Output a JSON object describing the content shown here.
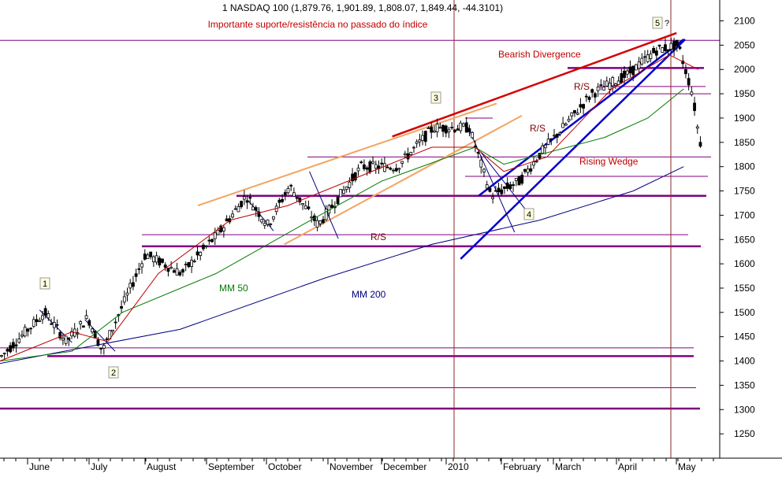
{
  "chart_data": {
    "type": "candlestick",
    "title": "1 NASDAQ 100 (1,879.76, 1,901.89, 1,808.07, 1,849.44, -44.3101)",
    "subtitle": "Importante suporte/resistência no passado do índice",
    "ylim": [
      1200,
      2130
    ],
    "y_ticks": [
      1250,
      1300,
      1350,
      1400,
      1450,
      1500,
      1550,
      1600,
      1650,
      1700,
      1750,
      1800,
      1850,
      1900,
      1950,
      2000,
      2050,
      2100
    ],
    "x_labels": [
      "June",
      "July",
      "August",
      "September",
      "October",
      "November",
      "December",
      "2010",
      "February",
      "March",
      "April",
      "May"
    ],
    "colors": {
      "candle": "#000000",
      "ma50": "#007a00",
      "ma200": "#000080",
      "ma_short": "#c00000",
      "sr_line": "#800080",
      "orange_trend": "#f4a460",
      "red_trend": "#d40000",
      "blue_trend": "#0000cc",
      "vline": "#8b2a2a",
      "annotation_red": "#c00000",
      "annotation_green": "#007a00",
      "annotation_navy": "#000080",
      "annotation_maroon": "#800000"
    },
    "annotations": {
      "bearish_divergence": "Bearish Divergence",
      "rising_wedge": "Rising Wedge",
      "rs1": "R/S",
      "rs2": "R/S",
      "rs3": "R/S",
      "ma50_label": "MM 50",
      "ma200_label": "MM 200",
      "wave1": "1",
      "wave2": "2",
      "wave3": "3",
      "wave4": "4",
      "wave5": "5",
      "question": "?"
    },
    "support_resistance_levels": [
      {
        "value": 2060,
        "strong": false
      },
      {
        "value": 2003,
        "strong": true
      },
      {
        "value": 1965,
        "strong": false
      },
      {
        "value": 1950,
        "strong": false
      },
      {
        "value": 1900,
        "strong": false
      },
      {
        "value": 1820,
        "strong": false
      },
      {
        "value": 1780,
        "strong": false
      },
      {
        "value": 1740,
        "strong": true
      },
      {
        "value": 1660,
        "strong": false
      },
      {
        "value": 1636,
        "strong": true
      },
      {
        "value": 1427,
        "strong": false
      },
      {
        "value": 1410,
        "strong": true
      },
      {
        "value": 1345,
        "strong": false
      },
      {
        "value": 1302,
        "strong": true
      }
    ],
    "ma200_points": [
      {
        "t": 0,
        "v": 1395
      },
      {
        "t": 0.25,
        "v": 1465
      },
      {
        "t": 0.45,
        "v": 1570
      },
      {
        "t": 0.6,
        "v": 1640
      },
      {
        "t": 0.75,
        "v": 1690
      },
      {
        "t": 0.88,
        "v": 1750
      },
      {
        "t": 0.95,
        "v": 1800
      }
    ],
    "ma50_points": [
      {
        "t": 0,
        "v": 1400
      },
      {
        "t": 0.1,
        "v": 1420
      },
      {
        "t": 0.17,
        "v": 1500
      },
      {
        "t": 0.3,
        "v": 1580
      },
      {
        "t": 0.42,
        "v": 1680
      },
      {
        "t": 0.53,
        "v": 1770
      },
      {
        "t": 0.66,
        "v": 1840
      },
      {
        "t": 0.7,
        "v": 1805
      },
      {
        "t": 0.84,
        "v": 1860
      },
      {
        "t": 0.9,
        "v": 1900
      },
      {
        "t": 0.95,
        "v": 1960
      }
    ],
    "price_points": [
      {
        "t": 0,
        "v": 1410
      },
      {
        "t": 0.06,
        "v": 1500
      },
      {
        "t": 0.09,
        "v": 1440
      },
      {
        "t": 0.12,
        "v": 1490
      },
      {
        "t": 0.14,
        "v": 1420
      },
      {
        "t": 0.2,
        "v": 1620
      },
      {
        "t": 0.25,
        "v": 1580
      },
      {
        "t": 0.3,
        "v": 1660
      },
      {
        "t": 0.34,
        "v": 1740
      },
      {
        "t": 0.37,
        "v": 1680
      },
      {
        "t": 0.4,
        "v": 1760
      },
      {
        "t": 0.44,
        "v": 1680
      },
      {
        "t": 0.5,
        "v": 1800
      },
      {
        "t": 0.55,
        "v": 1800
      },
      {
        "t": 0.6,
        "v": 1880
      },
      {
        "t": 0.65,
        "v": 1880
      },
      {
        "t": 0.68,
        "v": 1740
      },
      {
        "t": 0.72,
        "v": 1770
      },
      {
        "t": 0.75,
        "v": 1830
      },
      {
        "t": 0.78,
        "v": 1880
      },
      {
        "t": 0.82,
        "v": 1950
      },
      {
        "t": 0.87,
        "v": 1990
      },
      {
        "t": 0.91,
        "v": 2040
      },
      {
        "t": 0.94,
        "v": 2050
      },
      {
        "t": 0.96,
        "v": 1950
      },
      {
        "t": 0.97,
        "v": 1850
      }
    ],
    "ma_short_points": [
      {
        "t": 0,
        "v": 1400
      },
      {
        "t": 0.1,
        "v": 1460
      },
      {
        "t": 0.15,
        "v": 1440
      },
      {
        "t": 0.22,
        "v": 1580
      },
      {
        "t": 0.32,
        "v": 1690
      },
      {
        "t": 0.4,
        "v": 1720
      },
      {
        "t": 0.5,
        "v": 1780
      },
      {
        "t": 0.6,
        "v": 1840
      },
      {
        "t": 0.66,
        "v": 1840
      },
      {
        "t": 0.7,
        "v": 1790
      },
      {
        "t": 0.76,
        "v": 1820
      },
      {
        "t": 0.85,
        "v": 1960
      },
      {
        "t": 0.93,
        "v": 2030
      },
      {
        "t": 0.97,
        "v": 2000
      }
    ]
  }
}
